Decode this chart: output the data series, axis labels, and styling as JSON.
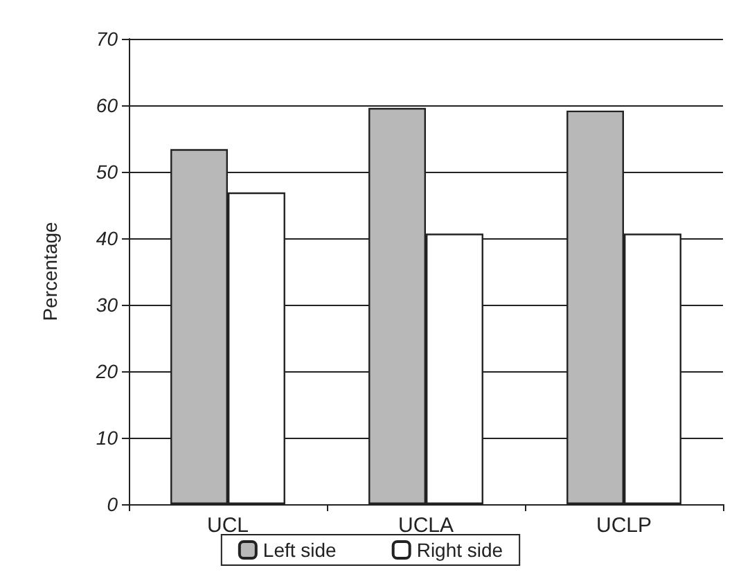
{
  "chart_data": {
    "type": "bar",
    "ylabel": "Percentage",
    "categories": [
      "UCL",
      "UCLA",
      "UCLP"
    ],
    "series": [
      {
        "name": "Left side",
        "color": "#b8b8b8",
        "values": [
          53.4,
          59.6,
          59.2
        ]
      },
      {
        "name": "Right side",
        "color": "#ffffff",
        "values": [
          46.9,
          40.7,
          40.7
        ]
      }
    ],
    "ylim": [
      0,
      70
    ],
    "yticks": [
      0,
      10,
      20,
      30,
      40,
      50,
      60,
      70
    ],
    "grid": "y",
    "legend": "bottom"
  }
}
